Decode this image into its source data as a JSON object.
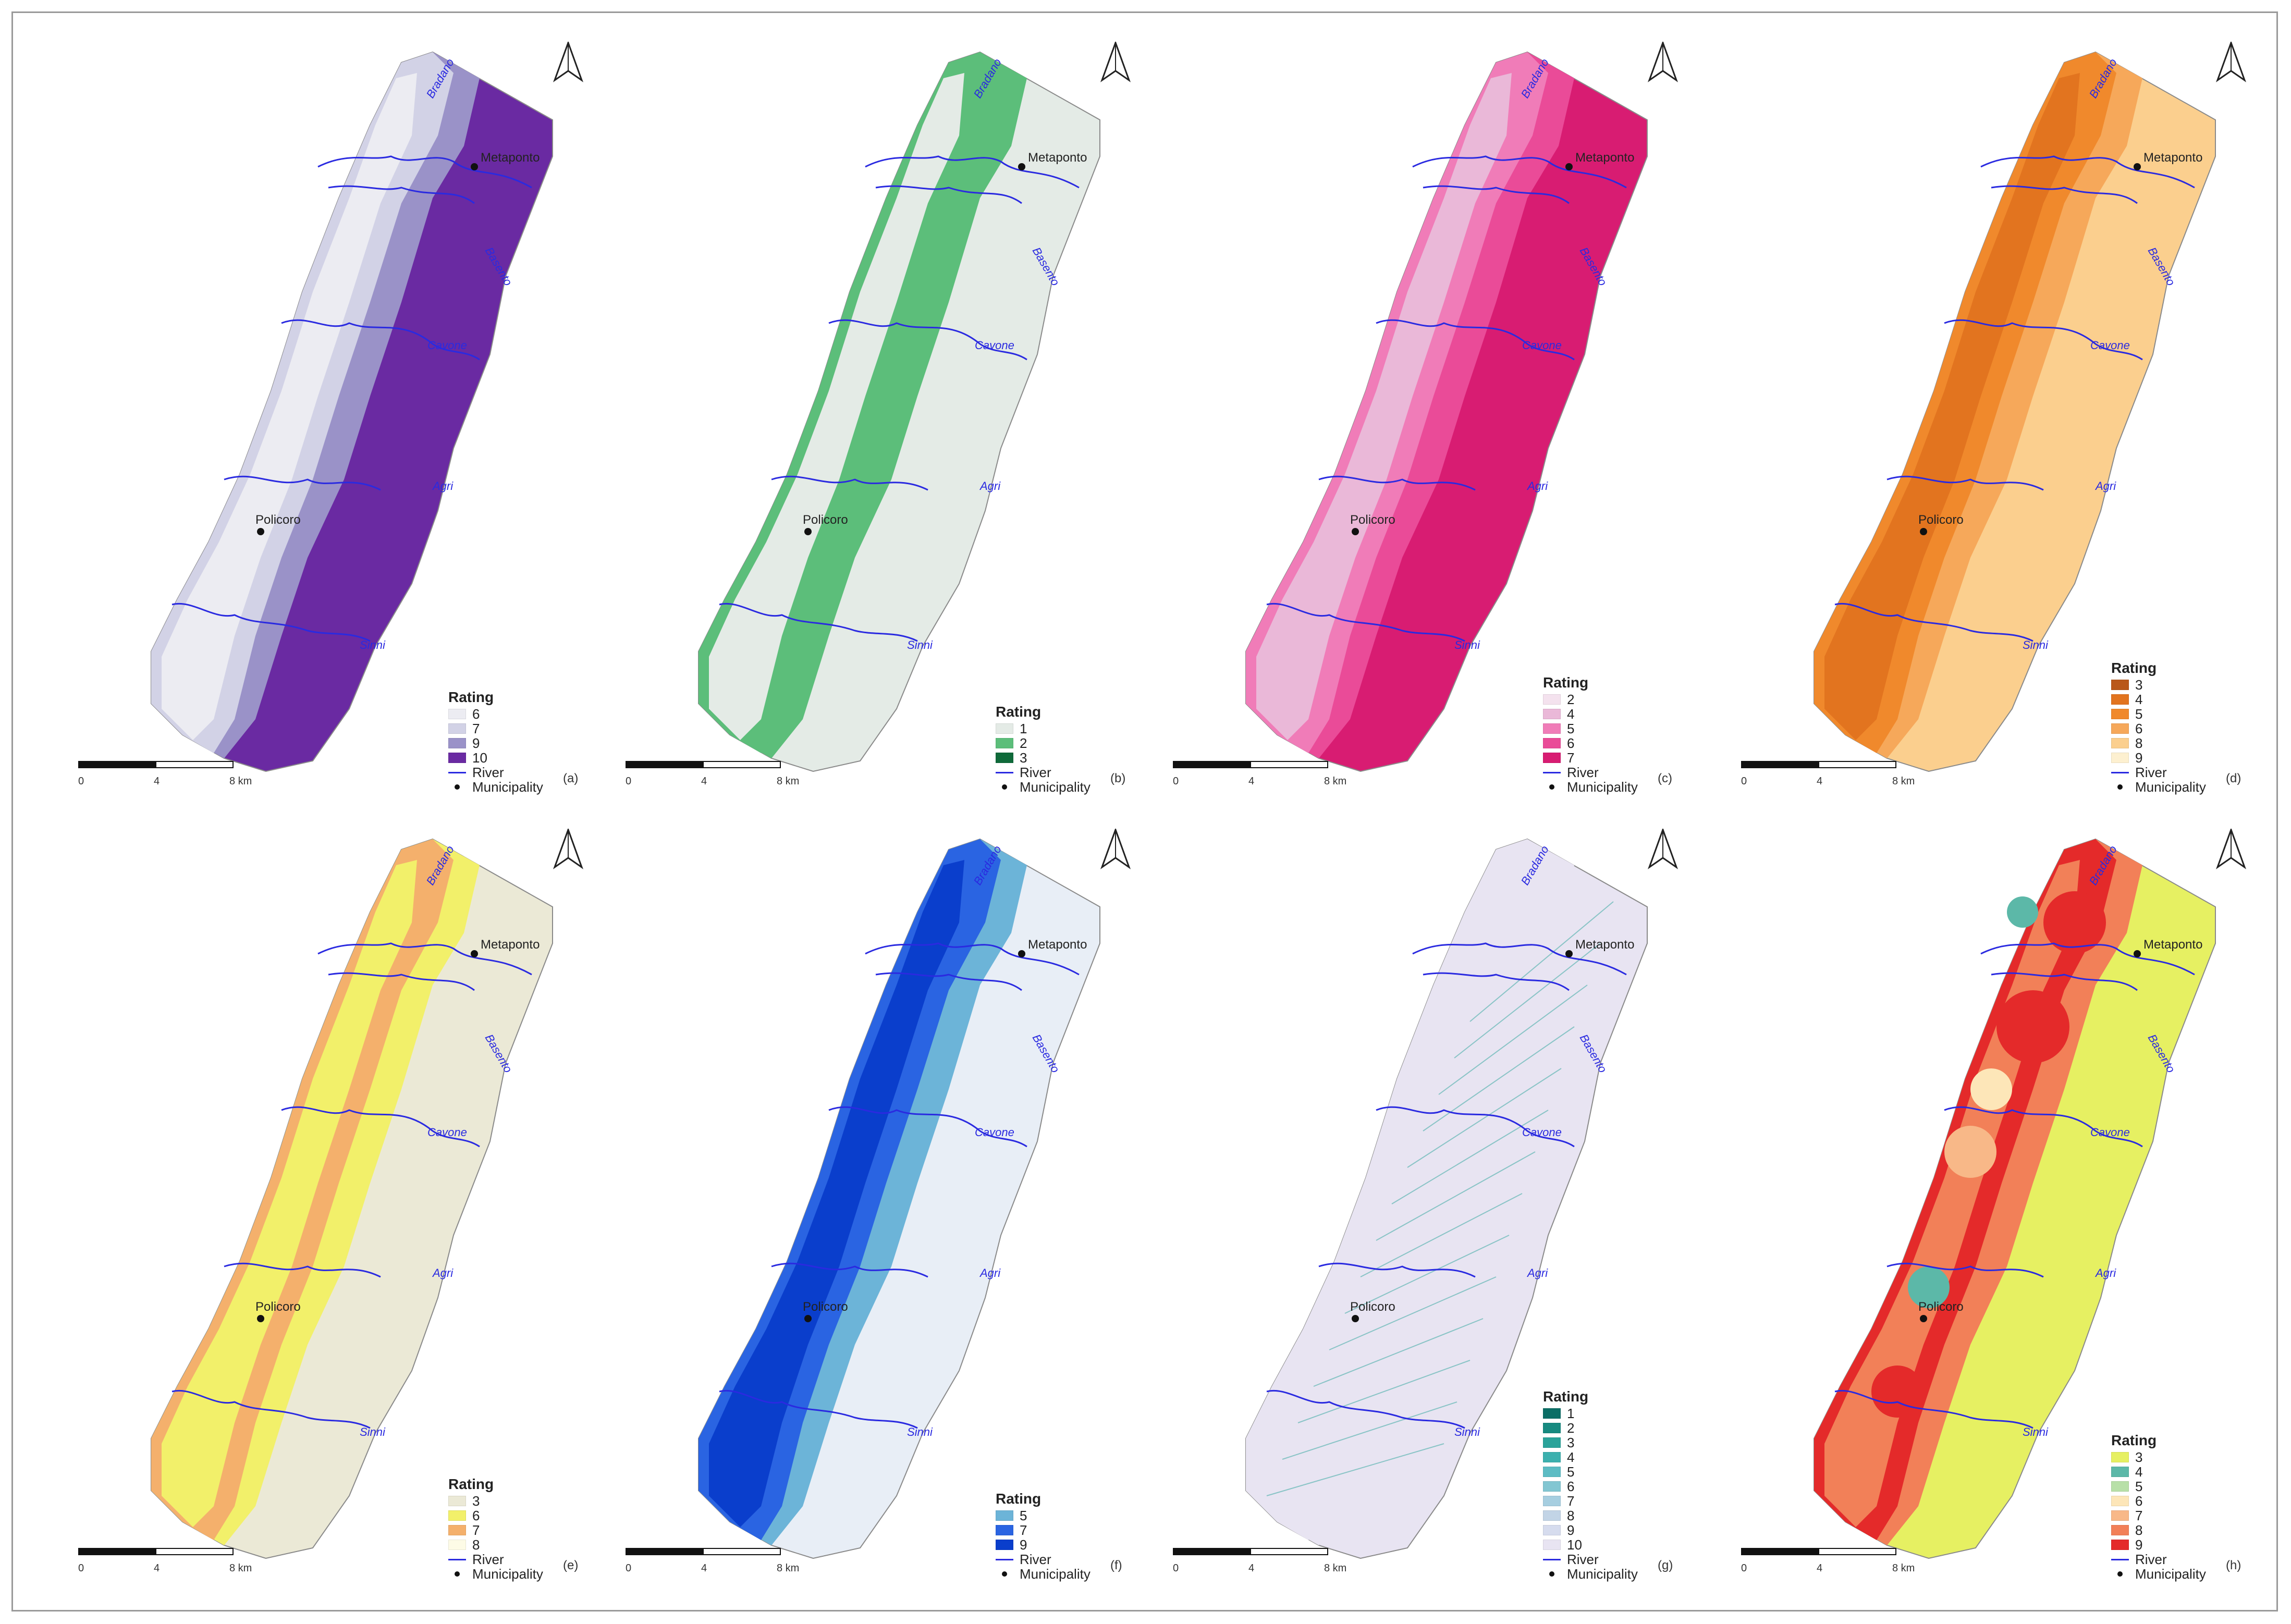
{
  "panels": [
    {
      "id": "a",
      "label": "(a)",
      "legend_title": "Rating",
      "scale": [
        "0",
        "4",
        "8 km"
      ],
      "ratings": [
        {
          "v": "6",
          "c": "#ececf2"
        },
        {
          "v": "7",
          "c": "#d2d2e6"
        },
        {
          "v": "9",
          "c": "#9a92c8"
        },
        {
          "v": "10",
          "c": "#6a2aa2"
        }
      ],
      "base": "#ececf2",
      "mid": "#d2d2e6",
      "mid2": "#9a92c8",
      "east": "#6a2aa2",
      "river": "River",
      "municipality": "Municipality"
    },
    {
      "id": "b",
      "label": "(b)",
      "legend_title": "Rating",
      "scale": [
        "0",
        "4",
        "8 km"
      ],
      "ratings": [
        {
          "v": "1",
          "c": "#e4ebe6"
        },
        {
          "v": "2",
          "c": "#5cbe7a"
        },
        {
          "v": "3",
          "c": "#0f6a3a"
        }
      ],
      "base": "#e4ebe6",
      "mid": "#5cbe7a",
      "mid2": "#5cbe7a",
      "east": "#e4ebe6",
      "river": "River",
      "municipality": "Municipality"
    },
    {
      "id": "c",
      "label": "(c)",
      "legend_title": "Rating",
      "scale": [
        "0",
        "4",
        "8 km"
      ],
      "ratings": [
        {
          "v": "2",
          "c": "#f4e2ee"
        },
        {
          "v": "4",
          "c": "#eab8d8"
        },
        {
          "v": "5",
          "c": "#f07cb8"
        },
        {
          "v": "6",
          "c": "#ea4b98"
        },
        {
          "v": "7",
          "c": "#d81c72"
        }
      ],
      "base": "#eab8d8",
      "mid": "#f07cb8",
      "mid2": "#ea4b98",
      "east": "#d81c72",
      "river": "River",
      "municipality": "Municipality"
    },
    {
      "id": "d",
      "label": "(d)",
      "legend_title": "Rating",
      "scale": [
        "0",
        "4",
        "8 km"
      ],
      "ratings": [
        {
          "v": "3",
          "c": "#b9581a"
        },
        {
          "v": "4",
          "c": "#e2741f"
        },
        {
          "v": "5",
          "c": "#f0892c"
        },
        {
          "v": "6",
          "c": "#f6a85a"
        },
        {
          "v": "8",
          "c": "#fbcf8e"
        },
        {
          "v": "9",
          "c": "#fdf0d0"
        }
      ],
      "base": "#e2741f",
      "mid": "#f0892c",
      "mid2": "#f6a85a",
      "east": "#fbcf8e",
      "river": "River",
      "municipality": "Municipality"
    },
    {
      "id": "e",
      "label": "(e)",
      "legend_title": "Rating",
      "scale": [
        "0",
        "4",
        "8 km"
      ],
      "ratings": [
        {
          "v": "3",
          "c": "#ebe9d6"
        },
        {
          "v": "6",
          "c": "#f2f06a"
        },
        {
          "v": "7",
          "c": "#f4b06c"
        },
        {
          "v": "8",
          "c": "#fdfbe6"
        }
      ],
      "base": "#f2f06a",
      "mid": "#f4b06c",
      "mid2": "#f2f06a",
      "east": "#ebe9d6",
      "river": "River",
      "municipality": "Municipality"
    },
    {
      "id": "f",
      "label": "(f)",
      "legend_title": "Rating",
      "scale": [
        "0",
        "4",
        "8 km"
      ],
      "ratings": [
        {
          "v": "5",
          "c": "#6cb4d8"
        },
        {
          "v": "7",
          "c": "#2a64e2"
        },
        {
          "v": "9",
          "c": "#0a3ecc"
        }
      ],
      "base": "#0a3ecc",
      "mid": "#2a64e2",
      "mid2": "#6cb4d8",
      "east": "#e8eef6",
      "river": "River",
      "municipality": "Municipality"
    },
    {
      "id": "g",
      "label": "(g)",
      "legend_title": "Rating",
      "scale": [
        "0",
        "4",
        "8 km"
      ],
      "ratings": [
        {
          "v": "1",
          "c": "#0b6e66"
        },
        {
          "v": "2",
          "c": "#178a80"
        },
        {
          "v": "3",
          "c": "#2aa39a"
        },
        {
          "v": "4",
          "c": "#3cb0ae"
        },
        {
          "v": "5",
          "c": "#5cbcc4"
        },
        {
          "v": "6",
          "c": "#82c6d2"
        },
        {
          "v": "7",
          "c": "#a6cee0"
        },
        {
          "v": "8",
          "c": "#c2d4e6"
        },
        {
          "v": "9",
          "c": "#d6dcee"
        },
        {
          "v": "10",
          "c": "#e8e4f2"
        }
      ],
      "base": "#e8e4f2",
      "mid": "#e8e4f2",
      "mid2": "#e8e4f2",
      "east": "#e8e4f2",
      "river": "River",
      "municipality": "Municipality"
    },
    {
      "id": "h",
      "label": "(h)",
      "legend_title": "Rating",
      "scale": [
        "0",
        "4",
        "8 km"
      ],
      "ratings": [
        {
          "v": "3",
          "c": "#e6f062"
        },
        {
          "v": "4",
          "c": "#5cb8a8"
        },
        {
          "v": "5",
          "c": "#b8e0a8"
        },
        {
          "v": "6",
          "c": "#fde6b8"
        },
        {
          "v": "7",
          "c": "#f8b888"
        },
        {
          "v": "8",
          "c": "#f28058"
        },
        {
          "v": "9",
          "c": "#e42a2a"
        }
      ],
      "base": "#f28058",
      "mid": "#e42a2a",
      "mid2": "#f28058",
      "east": "#e6f062",
      "river": "River",
      "municipality": "Municipality"
    }
  ],
  "places": {
    "metaponto": "Metaponto",
    "policoro": "Policoro"
  },
  "rivers": {
    "bradano": "Bradano",
    "basento": "Basento",
    "cavone": "Cavone",
    "agri": "Agri",
    "sinni": "Sinni"
  },
  "colors": {
    "river": "#2a2ae0",
    "outline": "#9a9a9a"
  }
}
